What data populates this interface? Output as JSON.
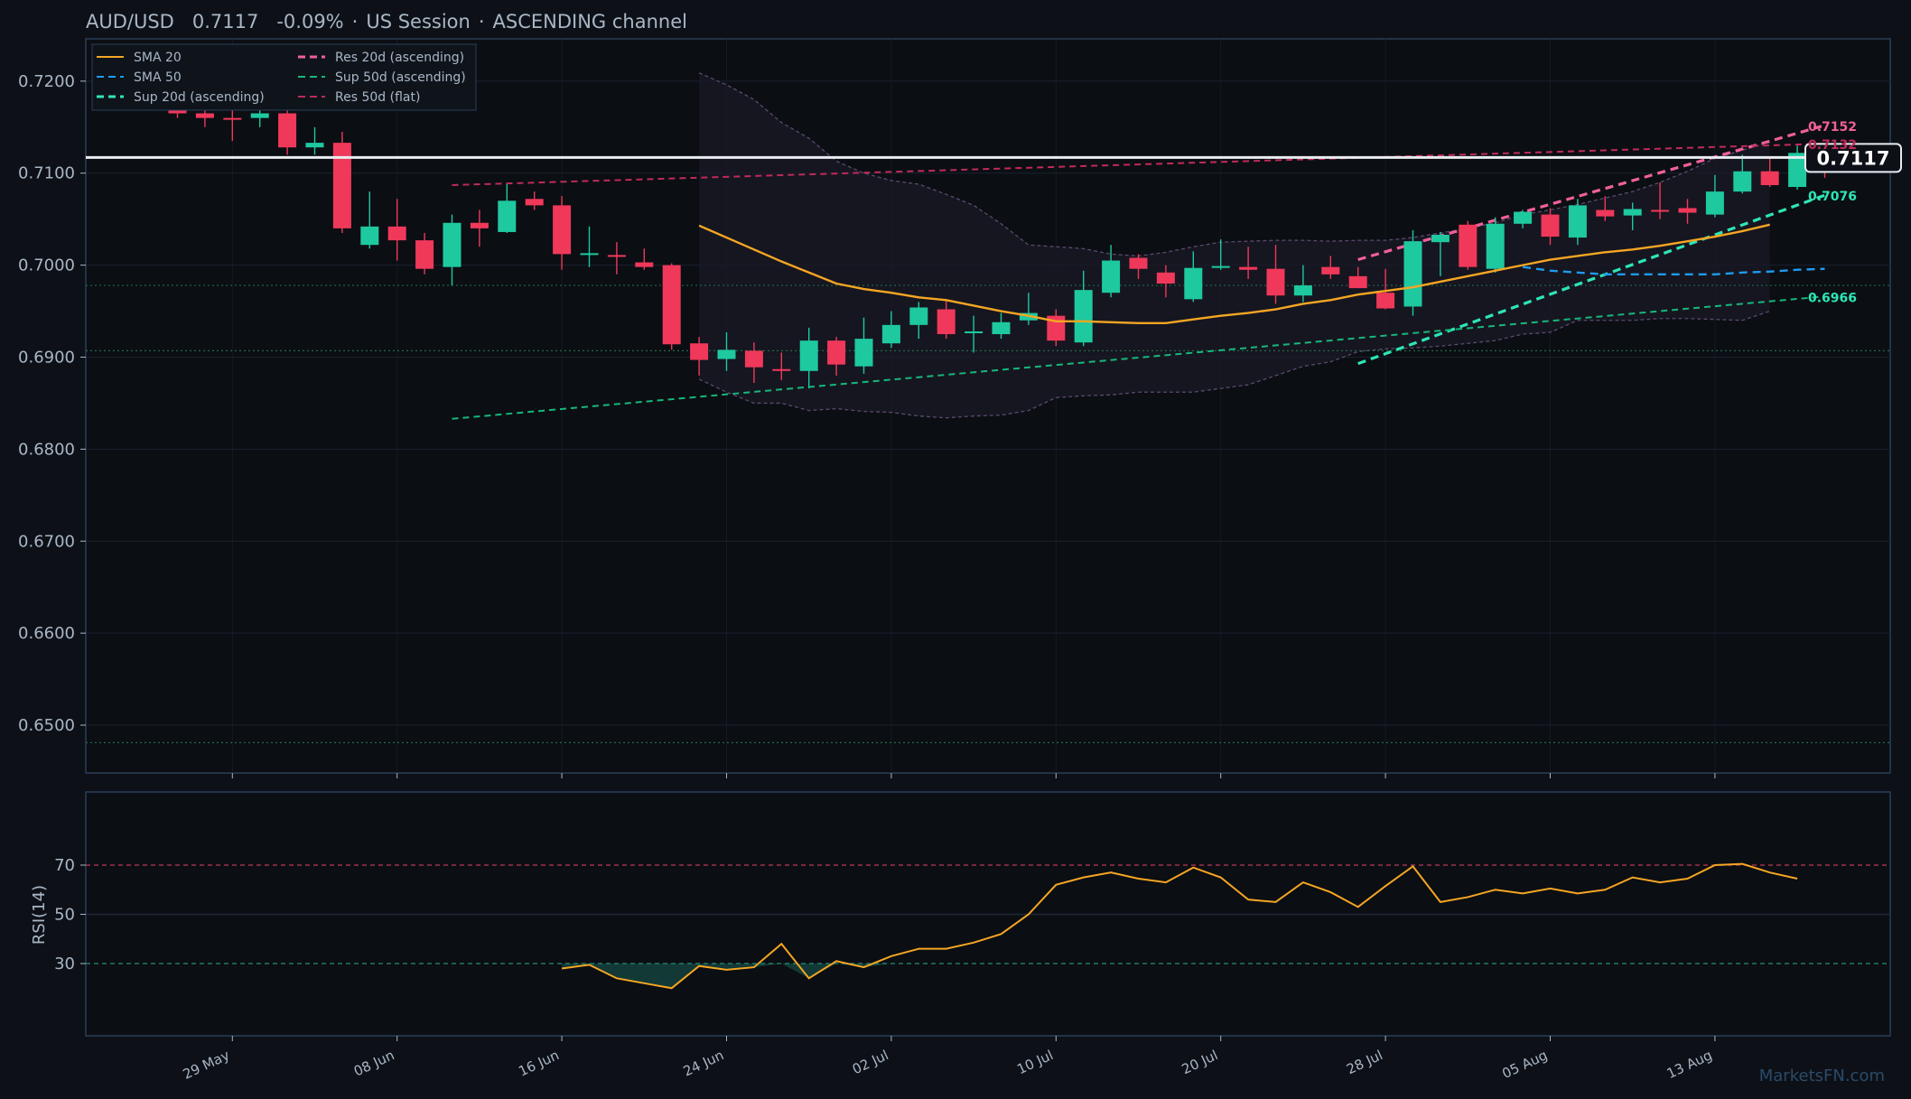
{
  "header": {
    "symbol": "AUD/USD",
    "price": "0.7117",
    "change": "-0.09%",
    "session": "US Session",
    "channel": "ASCENDING channel"
  },
  "watermark": "MarketsFN.com",
  "colors": {
    "background": "#0d1117",
    "up": "#1ec9a0",
    "down": "#f0385a",
    "sma20": "#f5a623",
    "sma50": "#1e9bf0",
    "sup20": "#2ee6b6",
    "sup50": "#16b87a",
    "res20": "#f0609a",
    "res50": "#c02a5a",
    "rsi": "#f5a623",
    "axis": "#2a3f5a"
  },
  "chart_data": [
    {
      "type": "candlestick",
      "title": "AUD/USD   0.7117   -0.09%  ·  US Session  ·  ASCENDING channel",
      "ylim": [
        0.6448,
        0.7246
      ],
      "y_ticks": [
        "0.7200",
        "0.7100",
        "0.7000",
        "0.6900",
        "0.6800",
        "0.6700",
        "0.6600",
        "0.6500"
      ],
      "x_tick_labels": [
        "29 May",
        "08 Jun",
        "16 Jun",
        "24 Jun",
        "02 Jul",
        "10 Jul",
        "20 Jul",
        "28 Jul",
        "05 Aug",
        "13 Aug"
      ],
      "x_tick_index": [
        2,
        8,
        14,
        20,
        26,
        32,
        38,
        44,
        50,
        56
      ],
      "candles": [
        [
          0.7186,
          0.719,
          0.716,
          0.7165
        ],
        [
          0.7165,
          0.7175,
          0.715,
          0.716
        ],
        [
          0.716,
          0.7172,
          0.7135,
          0.7158
        ],
        [
          0.716,
          0.718,
          0.715,
          0.7165
        ],
        [
          0.7165,
          0.718,
          0.712,
          0.7128
        ],
        [
          0.7128,
          0.715,
          0.712,
          0.7133
        ],
        [
          0.7133,
          0.7145,
          0.7035,
          0.704
        ],
        [
          0.7022,
          0.708,
          0.7018,
          0.7042
        ],
        [
          0.7042,
          0.7072,
          0.7005,
          0.7027
        ],
        [
          0.7027,
          0.7035,
          0.699,
          0.6996
        ],
        [
          0.6998,
          0.7055,
          0.6978,
          0.7046
        ],
        [
          0.7046,
          0.706,
          0.702,
          0.704
        ],
        [
          0.7036,
          0.7088,
          0.7035,
          0.707
        ],
        [
          0.7072,
          0.708,
          0.706,
          0.7065
        ],
        [
          0.7065,
          0.7075,
          0.6995,
          0.7012
        ],
        [
          0.7012,
          0.7042,
          0.6998,
          0.7013
        ],
        [
          0.7011,
          0.7025,
          0.699,
          0.7009
        ],
        [
          0.7003,
          0.7018,
          0.6995,
          0.6998
        ],
        [
          0.7,
          0.7002,
          0.6908,
          0.6914
        ],
        [
          0.6915,
          0.6922,
          0.688,
          0.6897
        ],
        [
          0.6898,
          0.6927,
          0.6885,
          0.6908
        ],
        [
          0.6907,
          0.6916,
          0.6872,
          0.6889
        ],
        [
          0.6887,
          0.6905,
          0.6875,
          0.6885
        ],
        [
          0.6885,
          0.6932,
          0.6866,
          0.6918
        ],
        [
          0.6918,
          0.6922,
          0.688,
          0.6892
        ],
        [
          0.689,
          0.6943,
          0.6882,
          0.692
        ],
        [
          0.6915,
          0.695,
          0.691,
          0.6935
        ],
        [
          0.6935,
          0.696,
          0.692,
          0.6954
        ],
        [
          0.6952,
          0.6962,
          0.692,
          0.6925
        ],
        [
          0.6926,
          0.6945,
          0.6905,
          0.6928
        ],
        [
          0.6925,
          0.6948,
          0.692,
          0.6938
        ],
        [
          0.694,
          0.697,
          0.6935,
          0.6948
        ],
        [
          0.6945,
          0.6952,
          0.6912,
          0.6918
        ],
        [
          0.6916,
          0.6994,
          0.6912,
          0.6973
        ],
        [
          0.697,
          0.7022,
          0.6965,
          0.7005
        ],
        [
          0.7008,
          0.7012,
          0.6985,
          0.6996
        ],
        [
          0.6992,
          0.7,
          0.6965,
          0.698
        ],
        [
          0.6963,
          0.7015,
          0.696,
          0.6997
        ],
        [
          0.6998,
          0.7028,
          0.6995,
          0.6999
        ],
        [
          0.6998,
          0.702,
          0.6985,
          0.6995
        ],
        [
          0.6996,
          0.7022,
          0.6958,
          0.6967
        ],
        [
          0.6967,
          0.7,
          0.696,
          0.6978
        ],
        [
          0.6998,
          0.701,
          0.6985,
          0.699
        ],
        [
          0.6988,
          0.6998,
          0.6975,
          0.6975
        ],
        [
          0.697,
          0.6996,
          0.6952,
          0.6953
        ],
        [
          0.6955,
          0.7038,
          0.6945,
          0.7026
        ],
        [
          0.7025,
          0.7036,
          0.6988,
          0.7033
        ],
        [
          0.7044,
          0.7048,
          0.6995,
          0.6998
        ],
        [
          0.6996,
          0.7052,
          0.6992,
          0.7045
        ],
        [
          0.7045,
          0.706,
          0.704,
          0.7058
        ],
        [
          0.7055,
          0.7062,
          0.7022,
          0.7031
        ],
        [
          0.703,
          0.7072,
          0.7022,
          0.7065
        ],
        [
          0.706,
          0.7075,
          0.7048,
          0.7053
        ],
        [
          0.7054,
          0.7068,
          0.7038,
          0.7061
        ],
        [
          0.706,
          0.709,
          0.705,
          0.7059
        ],
        [
          0.7062,
          0.7072,
          0.7045,
          0.7057
        ],
        [
          0.7055,
          0.7098,
          0.7052,
          0.708
        ],
        [
          0.708,
          0.712,
          0.7078,
          0.7102
        ],
        [
          0.7102,
          0.7118,
          0.7085,
          0.7087
        ],
        [
          0.7085,
          0.713,
          0.7082,
          0.7122
        ],
        [
          0.7122,
          0.7132,
          0.7095,
          0.7117
        ]
      ],
      "sma20": {
        "name": "SMA 20",
        "start_index": 19,
        "values": [
          0.7043,
          0.703,
          0.7017,
          0.7004,
          0.6992,
          0.698,
          0.6974,
          0.697,
          0.6965,
          0.6962,
          0.6956,
          0.695,
          0.6945,
          0.6939,
          0.6939,
          0.6938,
          0.6937,
          0.6937,
          0.6941,
          0.6945,
          0.6948,
          0.6952,
          0.6958,
          0.6962,
          0.6968,
          0.6972,
          0.6976,
          0.6982,
          0.6988,
          0.6994,
          0.7,
          0.7006,
          0.701,
          0.7014,
          0.7017,
          0.7021,
          0.7026,
          0.7031,
          0.7037,
          0.7044
        ]
      },
      "sma50": {
        "name": "SMA 50",
        "start_index": 49,
        "values": [
          0.6998,
          0.6994,
          0.6992,
          0.699,
          0.699,
          0.699,
          0.699,
          0.699,
          0.6992,
          0.6993,
          0.6995,
          0.6996
        ]
      },
      "bollinger": {
        "start_index": 19,
        "upper": [
          0.7209,
          0.7196,
          0.718,
          0.7155,
          0.7138,
          0.7113,
          0.71,
          0.7092,
          0.7088,
          0.7077,
          0.7065,
          0.7045,
          0.7022,
          0.702,
          0.7018,
          0.7012,
          0.701,
          0.7014,
          0.702,
          0.7025,
          0.7026,
          0.7027,
          0.7027,
          0.7026,
          0.7027,
          0.7027,
          0.703,
          0.7035,
          0.704,
          0.7046,
          0.7055,
          0.706,
          0.7066,
          0.7073,
          0.708,
          0.709,
          0.7102,
          0.7116,
          0.7125,
          0.7134
        ],
        "lower": [
          0.6876,
          0.6862,
          0.685,
          0.685,
          0.6842,
          0.6844,
          0.6841,
          0.684,
          0.6836,
          0.6834,
          0.6836,
          0.6837,
          0.6842,
          0.6856,
          0.6858,
          0.6859,
          0.6862,
          0.6862,
          0.6862,
          0.6866,
          0.687,
          0.688,
          0.689,
          0.6895,
          0.6906,
          0.6909,
          0.691,
          0.6912,
          0.6915,
          0.6918,
          0.6925,
          0.6927,
          0.694,
          0.694,
          0.694,
          0.6942,
          0.6942,
          0.6941,
          0.694,
          0.695
        ]
      },
      "trendlines": [
        {
          "name": "Res 20d (ascending)",
          "start_index": 43,
          "end_index": 60,
          "start": 0.7006,
          "end": 0.7152,
          "label": "0.7152"
        },
        {
          "name": "Sup 20d (ascending)",
          "start_index": 43,
          "end_index": 60,
          "start": 0.6893,
          "end": 0.7076,
          "label": "0.7076"
        },
        {
          "name": "Sup 50d (ascending)",
          "start_index": 10,
          "end_index": 60,
          "start": 0.6833,
          "end": 0.6966,
          "label": "0.6966"
        },
        {
          "name": "Res 50d (flat)",
          "start_index": 10,
          "end_index": 60,
          "start": 0.7087,
          "end": 0.7132,
          "label": "0.7132"
        }
      ],
      "horizontal_levels": [
        0.6978,
        0.6907,
        0.6481
      ],
      "last_price": 0.7117,
      "last_price_label": "0.7117",
      "legend": {
        "position": "top-left",
        "entries": [
          "SMA 20",
          "SMA 50",
          "Sup 20d (ascending)",
          "Res 20d (ascending)",
          "Sup 50d (ascending)",
          "Res 50d (flat)"
        ]
      }
    },
    {
      "type": "line",
      "ylabel": "RSI(14)",
      "ylim": [
        0,
        100
      ],
      "y_ticks": [
        "70",
        "50",
        "30"
      ],
      "reference_lines": [
        70,
        50,
        30
      ],
      "start_index": 14,
      "values": [
        28,
        29.5,
        24,
        22,
        20,
        29,
        27.5,
        28.5,
        38,
        24,
        31,
        28.5,
        33,
        36,
        36,
        38.5,
        42,
        50,
        62,
        65,
        67,
        64.5,
        63,
        69,
        65,
        56,
        55,
        63,
        59,
        53,
        61.5,
        69.5,
        55,
        57,
        60,
        58.5,
        60.5,
        58.5,
        60,
        65,
        63,
        64.5,
        70,
        70.5,
        67,
        64.5
      ]
    }
  ]
}
